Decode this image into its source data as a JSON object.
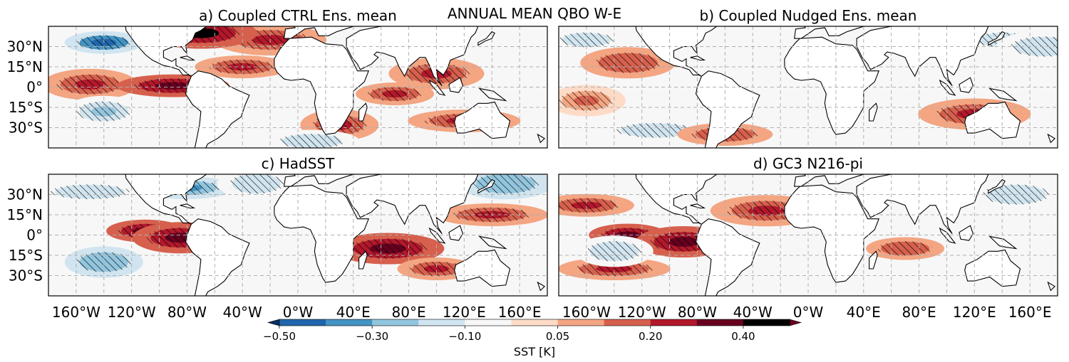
{
  "figure_title": "ANNUAL MEAN QBO W-E",
  "chart_data": [
    {
      "type": "heatmap",
      "title": "a) Coupled CTRL Ens. mean",
      "lon_range": [
        -180,
        180
      ],
      "lat_range": [
        -45,
        45
      ],
      "y_ticks": [
        "30°N",
        "15°N",
        "0°",
        "15°S",
        "30°S"
      ],
      "x_ticks": [],
      "grid": true,
      "hatching": "significant regions",
      "anomaly_features": [
        {
          "lon": -140,
          "lat": 33,
          "value": -0.45
        },
        {
          "lon": -150,
          "lat": 2,
          "value": 0.25
        },
        {
          "lon": -90,
          "lat": 1,
          "value": 0.35
        },
        {
          "lon": -140,
          "lat": -18,
          "value": -0.25
        },
        {
          "lon": -40,
          "lat": 15,
          "value": 0.25
        },
        {
          "lon": -20,
          "lat": 35,
          "value": 0.2
        },
        {
          "lon": 70,
          "lat": -5,
          "value": 0.25
        },
        {
          "lon": 100,
          "lat": 10,
          "value": 0.2
        },
        {
          "lon": 120,
          "lat": -25,
          "value": 0.25
        },
        {
          "lon": 30,
          "lat": -28,
          "value": 0.2
        },
        {
          "lon": 10,
          "lat": -40,
          "value": -0.2
        },
        {
          "lon": -70,
          "lat": 40,
          "value": 0.4
        }
      ]
    },
    {
      "type": "heatmap",
      "title": "b) Coupled Nudged Ens. mean",
      "lon_range": [
        -180,
        180
      ],
      "lat_range": [
        -45,
        45
      ],
      "y_ticks": [],
      "x_ticks": [],
      "grid": true,
      "hatching": "significant regions",
      "anomaly_features": [
        {
          "lon": -160,
          "lat": 35,
          "value": -0.2
        },
        {
          "lon": -130,
          "lat": 18,
          "value": 0.15
        },
        {
          "lon": -110,
          "lat": -32,
          "value": -0.2
        },
        {
          "lon": -160,
          "lat": -10,
          "value": 0.1
        },
        {
          "lon": -60,
          "lat": -35,
          "value": 0.15
        },
        {
          "lon": 120,
          "lat": -20,
          "value": 0.2
        },
        {
          "lon": 140,
          "lat": 35,
          "value": -0.2
        },
        {
          "lon": 170,
          "lat": 30,
          "value": -0.2
        }
      ]
    },
    {
      "type": "heatmap",
      "title": "c) HadSST",
      "lon_range": [
        -180,
        180
      ],
      "lat_range": [
        -45,
        45
      ],
      "y_ticks": [
        "30°N",
        "15°N",
        "0°",
        "15°S",
        "30°S"
      ],
      "x_ticks": [
        "160°W",
        "120°W",
        "80°W",
        "40°W",
        "0°W",
        "40°E",
        "80°E",
        "120°E",
        "160°E"
      ],
      "grid": true,
      "hatching": "significant regions",
      "anomaly_features": [
        {
          "lon": -110,
          "lat": 3,
          "value": 0.3
        },
        {
          "lon": -85,
          "lat": -2,
          "value": 0.35
        },
        {
          "lon": -150,
          "lat": 32,
          "value": -0.2
        },
        {
          "lon": -140,
          "lat": -20,
          "value": -0.3
        },
        {
          "lon": -80,
          "lat": 35,
          "value": -0.4
        },
        {
          "lon": 65,
          "lat": -10,
          "value": 0.3
        },
        {
          "lon": 100,
          "lat": -25,
          "value": 0.2
        },
        {
          "lon": 150,
          "lat": 38,
          "value": -0.3
        },
        {
          "lon": 140,
          "lat": 15,
          "value": 0.2
        },
        {
          "lon": -30,
          "lat": 38,
          "value": -0.2
        }
      ]
    },
    {
      "type": "heatmap",
      "title": "d) GC3 N216-pi",
      "lon_range": [
        -180,
        180
      ],
      "lat_range": [
        -45,
        45
      ],
      "y_ticks": [],
      "x_ticks": [
        "160°W",
        "120°W",
        "80°W",
        "40°W",
        "0°W",
        "40°E",
        "80°E",
        "120°E",
        "160°E"
      ],
      "grid": true,
      "hatching": "significant regions",
      "anomaly_features": [
        {
          "lon": -130,
          "lat": 0,
          "value": 0.35
        },
        {
          "lon": -90,
          "lat": -5,
          "value": 0.3
        },
        {
          "lon": -140,
          "lat": -25,
          "value": 0.2
        },
        {
          "lon": -140,
          "lat": -12,
          "value": -0.2
        },
        {
          "lon": -160,
          "lat": 22,
          "value": 0.2
        },
        {
          "lon": -30,
          "lat": 18,
          "value": 0.2
        },
        {
          "lon": 70,
          "lat": -10,
          "value": 0.15
        },
        {
          "lon": 150,
          "lat": 30,
          "value": -0.15
        }
      ]
    }
  ],
  "colorbar": {
    "label": "SST [K]",
    "ticks": [
      "−0.50",
      "−0.30",
      "−0.10",
      "0.05",
      "0.20",
      "0.40"
    ],
    "levels": [
      -0.5,
      -0.4,
      -0.3,
      -0.2,
      -0.1,
      -0.05,
      0.05,
      0.1,
      0.2,
      0.3,
      0.4,
      0.5
    ],
    "colors": [
      "#053061",
      "#2166ac",
      "#4393c3",
      "#92c5de",
      "#d1e5f0",
      "#f7f7f7",
      "#fddbc7",
      "#f4a582",
      "#d6604d",
      "#b2182b",
      "#67001f"
    ],
    "extend": "both"
  },
  "colors": {
    "neutral": "#f7f7f7",
    "land": "#ffffff",
    "coast": "#000000",
    "grid": "#b0b0b0"
  }
}
